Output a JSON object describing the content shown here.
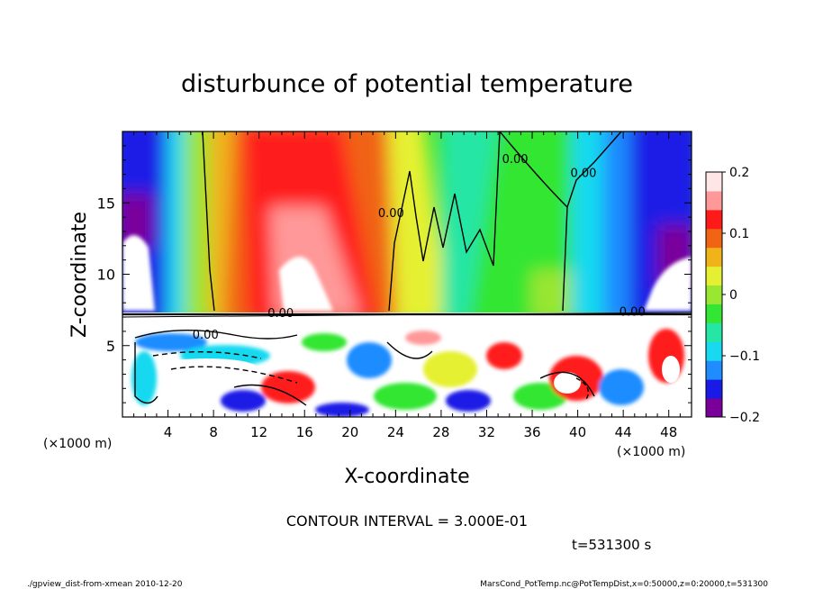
{
  "chart_data": {
    "type": "heatmap",
    "title": "disturbunce of potential temperature",
    "xlabel": "X-coordinate",
    "ylabel": "Z-coordinate",
    "x_unit_left": "(×1000 m)",
    "x_unit_right": "(×1000 m)",
    "xlim": [
      0,
      50
    ],
    "ylim": [
      0,
      20
    ],
    "x_ticks": [
      "4",
      "8",
      "12",
      "16",
      "20",
      "24",
      "28",
      "32",
      "36",
      "40",
      "44",
      "48"
    ],
    "x_tick_values": [
      4,
      8,
      12,
      16,
      20,
      24,
      28,
      32,
      36,
      40,
      44,
      48
    ],
    "y_ticks": [
      "5",
      "10",
      "15"
    ],
    "y_tick_values": [
      5,
      10,
      15
    ],
    "colorbar": {
      "min": -0.2,
      "max": 0.2,
      "ticks": [
        "0.2",
        "0.1",
        "0",
        "−0.1",
        "−0.2"
      ],
      "tick_values": [
        0.2,
        0.1,
        0,
        -0.1,
        -0.2
      ],
      "colors": [
        "#7a0099",
        "#1a1ae6",
        "#1f8cff",
        "#19d9f0",
        "#26e6a6",
        "#33e633",
        "#99e633",
        "#e6f033",
        "#f0b41a",
        "#f06414",
        "#ff1a1a",
        "#ff9999",
        "#ffe6e6"
      ]
    },
    "contour_labels": [
      {
        "text": "0.00",
        "x": 34.5,
        "z": 17.8
      },
      {
        "text": "0.00",
        "x": 40.5,
        "z": 16.8
      },
      {
        "text": "0.00",
        "x": 23.6,
        "z": 14.0
      },
      {
        "text": "0.00",
        "x": 13.9,
        "z": 7.0
      },
      {
        "text": "0.00",
        "x": 44.8,
        "z": 7.1
      },
      {
        "text": "0.00",
        "x": 7.3,
        "z": 5.5
      }
    ],
    "contour_interval": "CONTOUR INTERVAL = 3.000E-01",
    "time": "t=531300 s"
  },
  "footer": {
    "left": "./gpview_dist-from-xmean  2010-12-20",
    "right": "MarsCond_PotTemp.nc@PotTempDist,x=0:50000,z=0:20000,t=531300"
  }
}
